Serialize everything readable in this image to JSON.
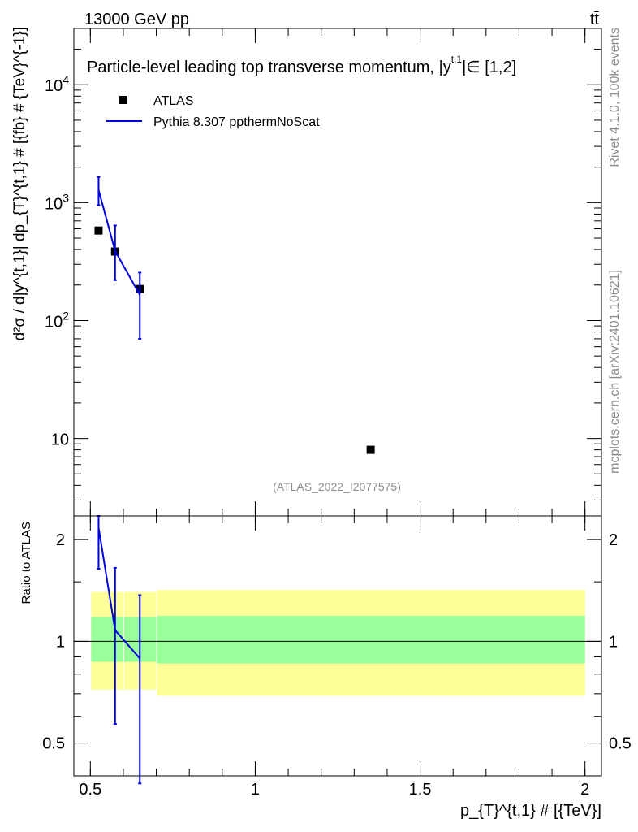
{
  "header": {
    "energy_label": "13000 GeV pp",
    "process_label": "tt̄"
  },
  "side_labels": {
    "rivet": "Rivet 4.1.0,  100k events",
    "mcplots": "mcplots.cern.ch [arXiv:2401.10621]"
  },
  "chart_data": [
    {
      "type": "scatter",
      "panel": "main",
      "title": "Particle-level leading top transverse momentum, |y^{t,1}| ∈ [1,2]",
      "title_parts": {
        "prefix": "Particle-level leading top transverse momentum, |",
        "y": "y",
        "sup": "t,1",
        "suffix": "|∈ [1,2]"
      },
      "watermark": "(ATLAS_2022_I2077575)",
      "ylabel": "d²σ / d|y^{t,1}| dp_{T}^{t,1} # [{fb} # {TeV}^{-1}]",
      "yscale": "log",
      "ylim": [
        2.2,
        30000
      ],
      "y_ticks": [
        {
          "value": 10000,
          "base": "10",
          "exp": "4"
        },
        {
          "value": 1000,
          "base": "10",
          "exp": "3"
        },
        {
          "value": 100,
          "base": "10",
          "exp": "2"
        },
        {
          "value": 10,
          "base": "10",
          "exp": ""
        }
      ],
      "legend": [
        {
          "name": "ATLAS",
          "marker": "square",
          "color": "#000000"
        },
        {
          "name": "Pythia 8.307 ppthermNoScat",
          "marker": "line",
          "color": "#0000dd"
        }
      ],
      "series": [
        {
          "name": "ATLAS",
          "color": "#000000",
          "x": [
            0.525,
            0.575,
            0.65,
            1.35
          ],
          "y": [
            580,
            385,
            185,
            8.0
          ]
        },
        {
          "name": "Pythia 8.307 ppthermNoScat",
          "color": "#0000dd",
          "x": [
            0.525,
            0.575,
            0.65
          ],
          "y": [
            1280,
            390,
            165
          ],
          "y_err_low": [
            950,
            220,
            70
          ],
          "y_err_high": [
            1650,
            640,
            255
          ]
        }
      ]
    },
    {
      "type": "line",
      "panel": "ratio",
      "ylabel": "Ratio to ATLAS",
      "xlabel": "p_{T}^{t,1} # [{TeV}]",
      "xlim": [
        0.45,
        2.05
      ],
      "yscale": "log",
      "ylim": [
        0.4,
        2.35
      ],
      "x_ticks": [
        {
          "value": 0.5,
          "label": "0.5"
        },
        {
          "value": 1.0,
          "label": "1"
        },
        {
          "value": 1.5,
          "label": "1.5"
        },
        {
          "value": 2.0,
          "label": "2"
        }
      ],
      "y_ticks": [
        {
          "value": 2,
          "label": "2"
        },
        {
          "value": 1,
          "label": "1"
        },
        {
          "value": 0.5,
          "label": "0.5"
        }
      ],
      "bands": [
        {
          "name": "total uncertainty",
          "color": "#ffff99",
          "bins": [
            {
              "x": [
                0.5,
                0.6
              ],
              "low": 0.72,
              "high": 1.4
            },
            {
              "x": [
                0.6,
                0.7
              ],
              "low": 0.72,
              "high": 1.4
            },
            {
              "x": [
                0.7,
                2.0
              ],
              "low": 0.69,
              "high": 1.42
            }
          ]
        },
        {
          "name": "stat uncertainty",
          "color": "#99ff99",
          "bins": [
            {
              "x": [
                0.5,
                0.6
              ],
              "low": 0.87,
              "high": 1.18
            },
            {
              "x": [
                0.6,
                0.7
              ],
              "low": 0.87,
              "high": 1.18
            },
            {
              "x": [
                0.7,
                2.0
              ],
              "low": 0.86,
              "high": 1.19
            }
          ]
        }
      ],
      "series": [
        {
          "name": "Pythia 8.307 ppthermNoScat",
          "color": "#0000dd",
          "x": [
            0.525,
            0.575,
            0.65
          ],
          "y": [
            2.17,
            1.08,
            0.89
          ],
          "y_err_low": [
            1.64,
            0.57,
            0.38
          ],
          "y_err_high": [
            2.35,
            1.65,
            1.37
          ]
        }
      ]
    }
  ]
}
